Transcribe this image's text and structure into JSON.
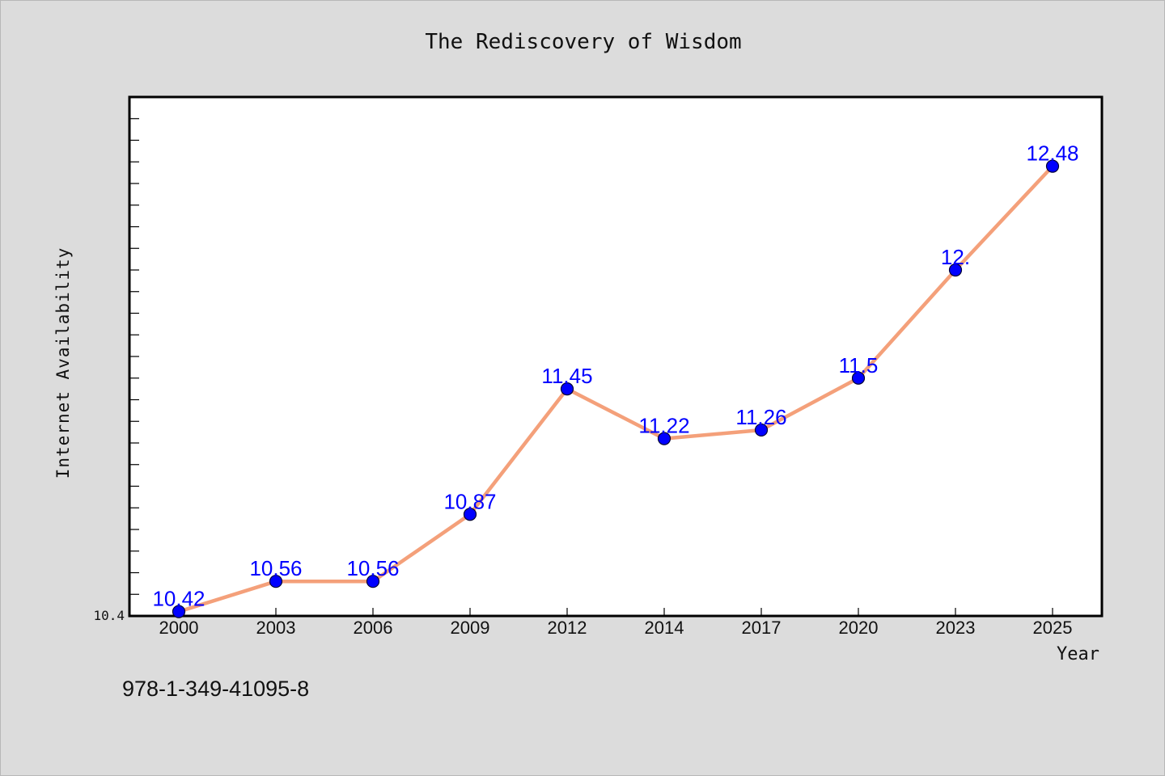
{
  "chart_data": {
    "type": "line",
    "title": "The Rediscovery of Wisdom",
    "xlabel": "Year",
    "ylabel": "Internet Availability",
    "categories": [
      "2000",
      "2003",
      "2006",
      "2009",
      "2012",
      "2014",
      "2017",
      "2020",
      "2023",
      "2025"
    ],
    "series": [
      {
        "values": [
          10.42,
          10.56,
          10.56,
          10.87,
          11.45,
          11.22,
          11.26,
          11.5,
          12.0,
          12.48
        ],
        "labels": [
          "10.42",
          "10.56",
          "10.56",
          "10.87",
          "11.45",
          "11.22",
          "11.26",
          "11.5",
          "12.",
          "12.48"
        ],
        "line_color": "#f4a07a",
        "marker_color": "#0000ff"
      }
    ],
    "ylim": [
      10.4,
      12.8
    ],
    "y_tick_labels": [
      "10.4"
    ],
    "grid": false,
    "legend": "none"
  },
  "footer": {
    "isbn": "978-1-349-41095-8"
  },
  "colors": {
    "background": "#dcdcdc",
    "plot_area": "#ffffff",
    "line": "#f4a07a",
    "marker": "#0000ff",
    "data_label": "#0000ff"
  }
}
